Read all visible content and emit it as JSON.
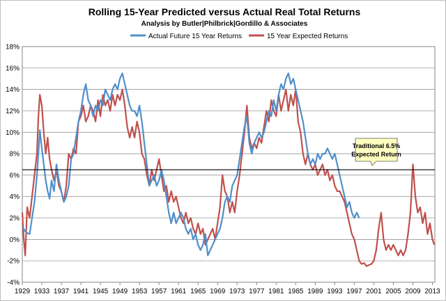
{
  "chart_data": {
    "type": "line",
    "title": "Rolling 15-Year Predicted versus Actual Real Total Returns",
    "subtitle": "Analysis by Butler|Philbrick|Gordillo & Associates",
    "xlabel": "",
    "ylabel": "",
    "xlim": [
      1929,
      2013.5
    ],
    "ylim": [
      -4,
      18
    ],
    "y_ticks": [
      -4,
      -2,
      0,
      2,
      4,
      6,
      8,
      10,
      12,
      14,
      16,
      18
    ],
    "y_tick_labels": [
      "-4%",
      "-2%",
      "0%",
      "2%",
      "4%",
      "6%",
      "8%",
      "10%",
      "12%",
      "14%",
      "16%",
      "18%"
    ],
    "x_ticks": [
      1929,
      1933,
      1937,
      1941,
      1945,
      1949,
      1953,
      1957,
      1961,
      1965,
      1969,
      1973,
      1977,
      1981,
      1985,
      1989,
      1993,
      1997,
      2001,
      2005,
      2009,
      2013
    ],
    "x_tick_labels": [
      "1929",
      "1933",
      "1937",
      "1941",
      "1945",
      "1949",
      "1953",
      "1957",
      "1961",
      "1965",
      "1969",
      "1973",
      "1977",
      "1981",
      "1985",
      "1989",
      "1993",
      "1997",
      "2001",
      "2005",
      "2009",
      "2013"
    ],
    "grid": "horizontal",
    "legend_position": "top",
    "reference_line": {
      "value": 6.5,
      "color": "#000000"
    },
    "annotation": {
      "text_lines": [
        "Traditional 6.5%",
        "Expected Return"
      ],
      "fill": "#ffffc0"
    },
    "series": [
      {
        "name": "Actual Future 15 Year Returns",
        "color": "#4f8fcb",
        "x": [
          1929.0,
          1929.5,
          1930.0,
          1930.5,
          1931.0,
          1931.5,
          1932.0,
          1932.3,
          1932.6,
          1933.0,
          1933.4,
          1933.8,
          1934.2,
          1934.6,
          1935.0,
          1935.5,
          1936.0,
          1936.5,
          1937.0,
          1937.5,
          1938.0,
          1938.5,
          1939.0,
          1939.5,
          1940.0,
          1940.5,
          1941.0,
          1941.5,
          1942.0,
          1942.5,
          1943.0,
          1943.5,
          1944.0,
          1944.5,
          1945.0,
          1945.5,
          1946.0,
          1946.5,
          1947.0,
          1947.5,
          1948.0,
          1948.5,
          1949.0,
          1949.5,
          1950.0,
          1950.5,
          1951.0,
          1951.5,
          1952.0,
          1952.5,
          1953.0,
          1953.5,
          1954.0,
          1954.5,
          1955.0,
          1955.5,
          1956.0,
          1956.5,
          1957.0,
          1957.5,
          1958.0,
          1958.5,
          1959.0,
          1959.5,
          1960.0,
          1960.5,
          1961.0,
          1961.5,
          1962.0,
          1962.5,
          1963.0,
          1963.5,
          1964.0,
          1964.5,
          1965.0,
          1965.5,
          1966.0,
          1966.5,
          1967.0,
          1967.5,
          1968.0,
          1968.5,
          1969.0,
          1969.5,
          1970.0,
          1970.5,
          1971.0,
          1971.5,
          1972.0,
          1972.5,
          1973.0,
          1973.5,
          1974.0,
          1974.5,
          1975.0,
          1975.5,
          1976.0,
          1976.5,
          1977.0,
          1977.5,
          1978.0,
          1978.5,
          1979.0,
          1979.5,
          1980.0,
          1980.5,
          1981.0,
          1981.5,
          1982.0,
          1982.5,
          1983.0,
          1983.5,
          1984.0,
          1984.5,
          1985.0,
          1985.5,
          1986.0,
          1986.5,
          1987.0,
          1987.5,
          1988.0,
          1988.5,
          1989.0,
          1989.5,
          1990.0,
          1990.5,
          1991.0,
          1991.5,
          1992.0,
          1992.5,
          1993.0,
          1993.5,
          1994.0,
          1994.5,
          1995.0,
          1995.5,
          1996.0,
          1996.5,
          1997.0,
          1997.5,
          1998.0
        ],
        "y": [
          1.2,
          0.8,
          0.6,
          0.5,
          2.0,
          3.5,
          6.0,
          8.0,
          10.2,
          8.5,
          7.0,
          5.5,
          4.5,
          3.8,
          5.5,
          4.5,
          7.0,
          5.5,
          4.5,
          3.5,
          4.0,
          5.0,
          7.5,
          8.0,
          9.5,
          11.0,
          12.0,
          13.5,
          14.5,
          13.0,
          12.5,
          11.5,
          12.5,
          12.0,
          13.0,
          12.5,
          14.0,
          13.5,
          13.0,
          14.0,
          14.5,
          14.0,
          15.0,
          15.5,
          14.5,
          13.5,
          12.5,
          12.0,
          12.0,
          11.5,
          12.5,
          11.0,
          9.0,
          7.0,
          5.0,
          5.5,
          6.0,
          5.0,
          5.5,
          6.5,
          5.5,
          4.0,
          2.5,
          1.5,
          2.5,
          1.5,
          2.0,
          2.5,
          2.0,
          1.0,
          0.5,
          1.0,
          0.0,
          0.5,
          -0.5,
          -1.0,
          -0.5,
          0.5,
          -1.5,
          -1.0,
          -0.5,
          0.0,
          0.5,
          1.0,
          2.0,
          3.5,
          4.0,
          3.5,
          5.0,
          5.5,
          6.0,
          7.5,
          9.0,
          10.5,
          11.5,
          9.0,
          8.0,
          9.0,
          9.5,
          10.0,
          9.5,
          10.0,
          11.0,
          12.0,
          11.5,
          13.0,
          12.0,
          13.5,
          14.5,
          14.0,
          15.0,
          15.5,
          14.5,
          15.0,
          14.0,
          13.0,
          12.0,
          11.0,
          9.5,
          8.0,
          7.0,
          7.5,
          7.0,
          8.0,
          7.5,
          8.0,
          8.0,
          8.5,
          8.0,
          7.5,
          8.0,
          7.0,
          6.0,
          5.0,
          4.0,
          3.0,
          3.5,
          2.5,
          2.0,
          2.5,
          2.0
        ],
        "end_label": ""
      },
      {
        "name": "15 Year Expected Returns",
        "color": "#c0504d",
        "x": [
          1929.0,
          1929.3,
          1929.6,
          1930.0,
          1930.5,
          1931.0,
          1931.5,
          1932.0,
          1932.3,
          1932.6,
          1933.0,
          1933.4,
          1933.8,
          1934.2,
          1934.6,
          1935.0,
          1935.5,
          1936.0,
          1936.5,
          1937.0,
          1937.5,
          1938.0,
          1938.5,
          1939.0,
          1939.5,
          1940.0,
          1940.5,
          1941.0,
          1941.5,
          1942.0,
          1942.5,
          1943.0,
          1943.5,
          1944.0,
          1944.5,
          1945.0,
          1945.5,
          1946.0,
          1946.5,
          1947.0,
          1947.5,
          1948.0,
          1948.5,
          1949.0,
          1949.5,
          1950.0,
          1950.5,
          1951.0,
          1951.5,
          1952.0,
          1952.5,
          1953.0,
          1953.5,
          1954.0,
          1954.5,
          1955.0,
          1955.5,
          1956.0,
          1956.5,
          1957.0,
          1957.5,
          1958.0,
          1958.5,
          1959.0,
          1959.5,
          1960.0,
          1960.5,
          1961.0,
          1961.5,
          1962.0,
          1962.5,
          1963.0,
          1963.5,
          1964.0,
          1964.5,
          1965.0,
          1965.5,
          1966.0,
          1966.5,
          1967.0,
          1967.5,
          1968.0,
          1968.5,
          1969.0,
          1969.5,
          1970.0,
          1970.5,
          1971.0,
          1971.5,
          1972.0,
          1972.5,
          1973.0,
          1973.5,
          1974.0,
          1974.5,
          1975.0,
          1975.5,
          1976.0,
          1976.5,
          1977.0,
          1977.5,
          1978.0,
          1978.5,
          1979.0,
          1979.5,
          1980.0,
          1980.5,
          1981.0,
          1981.5,
          1982.0,
          1982.5,
          1983.0,
          1983.5,
          1984.0,
          1984.5,
          1985.0,
          1985.5,
          1986.0,
          1986.5,
          1987.0,
          1987.5,
          1988.0,
          1988.5,
          1989.0,
          1989.5,
          1990.0,
          1990.5,
          1991.0,
          1991.5,
          1992.0,
          1992.5,
          1993.0,
          1993.5,
          1994.0,
          1994.5,
          1995.0,
          1995.5,
          1996.0,
          1996.5,
          1997.0,
          1997.5,
          1998.0,
          1998.5,
          1999.0,
          1999.5,
          2000.0,
          2000.5,
          2001.0,
          2001.5,
          2002.0,
          2002.5,
          2003.0,
          2003.5,
          2004.0,
          2004.5,
          2005.0,
          2005.5,
          2006.0,
          2006.5,
          2007.0,
          2007.5,
          2008.0,
          2008.5,
          2009.0,
          2009.5,
          2010.0,
          2010.5,
          2011.0,
          2011.5,
          2012.0,
          2012.5,
          2013.0,
          2013.4
        ],
        "y": [
          2.5,
          0.0,
          -1.5,
          3.0,
          2.0,
          4.0,
          6.0,
          8.0,
          11.5,
          13.5,
          12.5,
          10.0,
          8.0,
          9.5,
          7.5,
          6.5,
          5.5,
          6.5,
          5.0,
          4.5,
          3.5,
          5.0,
          8.0,
          7.5,
          8.5,
          8.0,
          11.0,
          11.5,
          12.5,
          11.0,
          11.5,
          12.5,
          12.0,
          11.0,
          13.0,
          11.5,
          13.5,
          12.5,
          13.0,
          12.0,
          13.5,
          12.5,
          13.5,
          13.0,
          14.0,
          12.5,
          10.5,
          9.5,
          10.5,
          9.5,
          11.0,
          10.0,
          8.0,
          7.5,
          6.0,
          5.0,
          6.5,
          5.5,
          6.5,
          7.5,
          6.0,
          4.5,
          5.0,
          3.5,
          4.5,
          3.5,
          4.0,
          3.0,
          2.0,
          1.5,
          2.5,
          1.5,
          2.0,
          1.0,
          0.5,
          1.5,
          0.5,
          1.0,
          -0.5,
          0.0,
          0.5,
          1.0,
          0.0,
          1.5,
          3.0,
          6.0,
          4.5,
          4.0,
          2.5,
          3.5,
          2.5,
          4.5,
          6.0,
          8.0,
          10.0,
          12.5,
          9.5,
          8.5,
          9.0,
          8.5,
          9.5,
          9.0,
          10.5,
          12.0,
          11.0,
          13.0,
          12.0,
          11.5,
          13.5,
          12.0,
          13.0,
          14.0,
          12.0,
          13.5,
          12.5,
          14.0,
          11.0,
          10.0,
          8.0,
          7.0,
          8.0,
          7.0,
          6.5,
          7.0,
          6.0,
          6.5,
          7.0,
          6.0,
          6.5,
          5.5,
          6.0,
          5.0,
          4.5,
          4.5,
          4.0,
          3.5,
          2.5,
          1.5,
          0.5,
          0.0,
          -1.0,
          -2.0,
          -2.3,
          -2.2,
          -2.5,
          -2.4,
          -2.3,
          -2.0,
          -1.0,
          1.0,
          2.5,
          0.0,
          -1.0,
          -0.5,
          -1.0,
          -0.5,
          -1.0,
          -1.5,
          -1.0,
          -1.5,
          -1.0,
          0.5,
          2.5,
          7.0,
          4.0,
          2.5,
          3.0,
          1.5,
          2.5,
          0.5,
          1.5,
          0.0,
          -0.5
        ]
      }
    ]
  }
}
